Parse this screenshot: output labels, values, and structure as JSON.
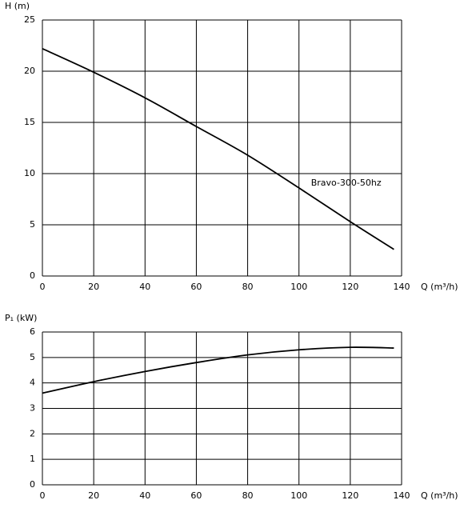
{
  "chart_data": [
    {
      "type": "line",
      "ylabel": "H (m)",
      "xlabel": "Q (m³/h)",
      "x": [
        0,
        20,
        40,
        60,
        80,
        100,
        120,
        137
      ],
      "series": [
        {
          "name": "Bravo-300-50hz",
          "color": "#000000",
          "values": [
            22.2,
            19.9,
            17.4,
            14.6,
            11.8,
            8.6,
            5.3,
            2.6
          ]
        }
      ],
      "xlim": [
        0,
        140
      ],
      "xticks": [
        0,
        20,
        40,
        60,
        80,
        100,
        120,
        140
      ],
      "ylim": [
        0,
        25
      ],
      "yticks": [
        0,
        5,
        10,
        15,
        20,
        25
      ],
      "grid": true
    },
    {
      "type": "line",
      "ylabel": "P₁ (kW)",
      "xlabel": "Q (m³/h)",
      "x": [
        0,
        20,
        40,
        60,
        80,
        100,
        120,
        137
      ],
      "series": [
        {
          "color": "#000000",
          "values": [
            3.6,
            4.05,
            4.45,
            4.8,
            5.1,
            5.3,
            5.4,
            5.37
          ]
        }
      ],
      "xlim": [
        0,
        140
      ],
      "xticks": [
        0,
        20,
        40,
        60,
        80,
        100,
        120,
        140
      ],
      "ylim": [
        0,
        6
      ],
      "yticks": [
        0,
        1,
        2,
        3,
        4,
        5,
        6
      ],
      "grid": true
    }
  ]
}
